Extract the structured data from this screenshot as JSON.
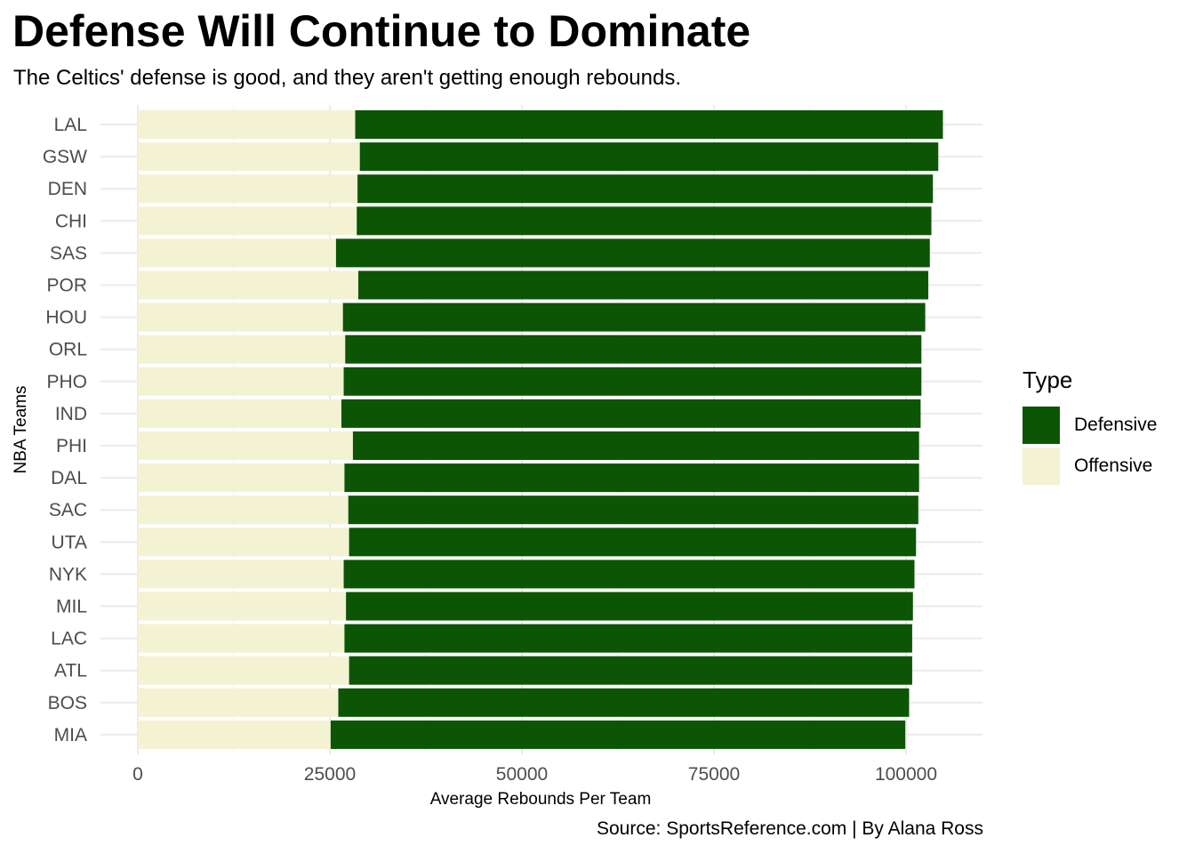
{
  "chart_data": {
    "type": "bar",
    "orientation": "horizontal",
    "stacked": true,
    "title": "Defense Will Continue to Dominate",
    "subtitle": "The Celtics' defense is good, and they aren't getting enough rebounds.",
    "caption": "Source: SportsReference.com | By Alana Ross",
    "xlabel": "Average Rebounds Per Team",
    "ylabel": "NBA Teams",
    "xlim": [
      0,
      105000
    ],
    "x_ticks": [
      0,
      25000,
      50000,
      75000,
      100000
    ],
    "x_tick_labels": [
      "0",
      "25000",
      "50000",
      "75000",
      "100000"
    ],
    "grid": true,
    "legend": {
      "title": "Type",
      "position": "right"
    },
    "categories": [
      "LAL",
      "GSW",
      "DEN",
      "CHI",
      "SAS",
      "POR",
      "HOU",
      "ORL",
      "PHO",
      "IND",
      "PHI",
      "DAL",
      "SAC",
      "UTA",
      "NYK",
      "MIL",
      "LAC",
      "ATL",
      "BOS",
      "MIA"
    ],
    "series": [
      {
        "name": "Offensive",
        "color": "#f3f2d3",
        "values": [
          28300,
          28900,
          28600,
          28500,
          25800,
          28700,
          26700,
          27000,
          26800,
          26500,
          28000,
          26900,
          27400,
          27500,
          26800,
          27100,
          26900,
          27500,
          26100,
          25100
        ]
      },
      {
        "name": "Defensive",
        "color": "#0b5504",
        "values": [
          76500,
          75300,
          74900,
          74800,
          77300,
          74200,
          75800,
          75000,
          75200,
          75400,
          73700,
          74800,
          74200,
          73800,
          74300,
          73800,
          73900,
          73300,
          74300,
          74800
        ]
      }
    ]
  }
}
